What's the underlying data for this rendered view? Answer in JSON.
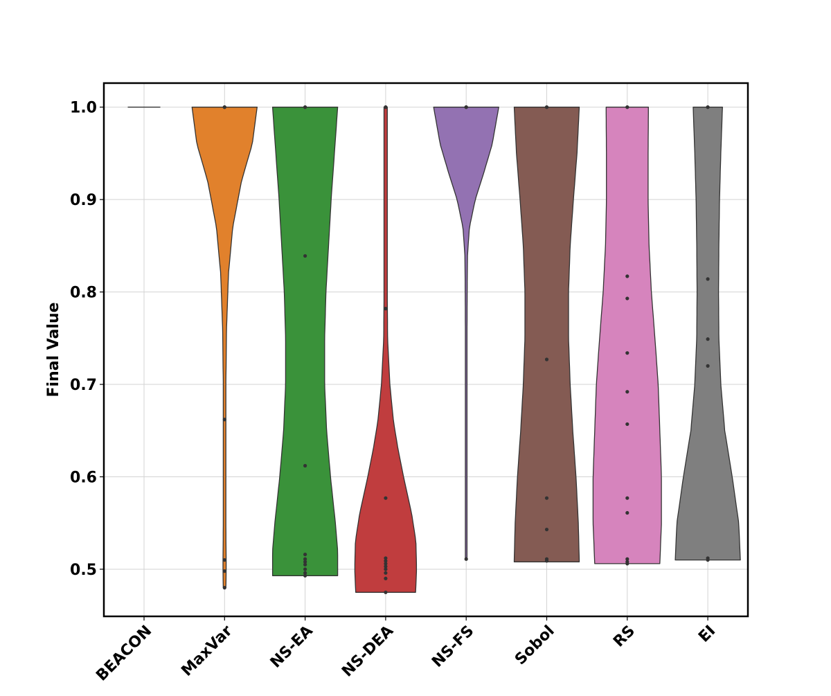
{
  "chart_data": {
    "type": "violin",
    "title": "",
    "xlabel": "",
    "ylabel": "Final Value",
    "ylim": [
      0.449,
      1.026
    ],
    "yticks": [
      0.5,
      0.6,
      0.7,
      0.8,
      0.9,
      1.0
    ],
    "ytick_labels": [
      "0.5",
      "0.6",
      "0.7",
      "0.8",
      "0.9",
      "1.0"
    ],
    "grid": true,
    "categories": [
      "BEACON",
      "MaxVar",
      "NS-EA",
      "NS-DEA",
      "NS-FS",
      "Sobol",
      "RS",
      "EI"
    ],
    "series": [
      {
        "category": "BEACON",
        "color": "#7f7f7f",
        "min": 1.0,
        "max": 1.0,
        "points": [],
        "density": [
          [
            1.0,
            1.0
          ]
        ]
      },
      {
        "category": "MaxVar",
        "color": "#e1812c",
        "min": 0.48,
        "max": 1.0,
        "points": [
          1.0,
          1.0,
          1.0,
          0.662,
          0.51,
          0.498,
          0.48
        ],
        "density": [
          [
            0.48,
            0.04
          ],
          [
            0.5,
            0.05
          ],
          [
            0.55,
            0.04
          ],
          [
            0.62,
            0.04
          ],
          [
            0.7,
            0.04
          ],
          [
            0.76,
            0.06
          ],
          [
            0.82,
            0.12
          ],
          [
            0.87,
            0.25
          ],
          [
            0.92,
            0.52
          ],
          [
            0.96,
            0.85
          ],
          [
            1.0,
            1.0
          ]
        ]
      },
      {
        "category": "NS-EA",
        "color": "#3a923a",
        "min": 0.493,
        "max": 1.0,
        "points": [
          1.0,
          1.0,
          0.839,
          0.612,
          0.516,
          0.511,
          0.508,
          0.505,
          0.5,
          0.496,
          0.493
        ],
        "density": [
          [
            0.493,
            1.0
          ],
          [
            0.52,
            1.0
          ],
          [
            0.55,
            0.93
          ],
          [
            0.6,
            0.78
          ],
          [
            0.65,
            0.66
          ],
          [
            0.7,
            0.6
          ],
          [
            0.75,
            0.6
          ],
          [
            0.8,
            0.64
          ],
          [
            0.85,
            0.72
          ],
          [
            0.9,
            0.8
          ],
          [
            0.95,
            0.9
          ],
          [
            1.0,
            1.0
          ]
        ]
      },
      {
        "category": "NS-DEA",
        "color": "#c03d3e",
        "min": 0.475,
        "max": 1.0,
        "points": [
          1.0,
          1.0,
          0.782,
          0.577,
          0.512,
          0.509,
          0.506,
          0.503,
          0.5,
          0.496,
          0.49,
          0.475
        ],
        "density": [
          [
            0.475,
            0.92
          ],
          [
            0.5,
            0.95
          ],
          [
            0.53,
            0.93
          ],
          [
            0.56,
            0.8
          ],
          [
            0.6,
            0.55
          ],
          [
            0.63,
            0.38
          ],
          [
            0.66,
            0.24
          ],
          [
            0.7,
            0.13
          ],
          [
            0.75,
            0.06
          ],
          [
            0.8,
            0.05
          ],
          [
            0.85,
            0.05
          ],
          [
            0.9,
            0.05
          ],
          [
            0.95,
            0.05
          ],
          [
            1.0,
            0.05
          ]
        ]
      },
      {
        "category": "NS-FS",
        "color": "#9372b2",
        "min": 0.511,
        "max": 1.0,
        "points": [
          1.0,
          1.0,
          1.0,
          0.511
        ],
        "density": [
          [
            0.511,
            0.02
          ],
          [
            0.6,
            0.02
          ],
          [
            0.7,
            0.02
          ],
          [
            0.8,
            0.03
          ],
          [
            0.84,
            0.04
          ],
          [
            0.87,
            0.1
          ],
          [
            0.9,
            0.28
          ],
          [
            0.93,
            0.55
          ],
          [
            0.96,
            0.8
          ],
          [
            1.0,
            1.0
          ]
        ]
      },
      {
        "category": "Sobol",
        "color": "#845b53",
        "min": 0.508,
        "max": 1.0,
        "points": [
          1.0,
          1.0,
          0.727,
          0.577,
          0.543,
          0.511,
          0.509
        ],
        "density": [
          [
            0.508,
            1.0
          ],
          [
            0.55,
            0.97
          ],
          [
            0.6,
            0.9
          ],
          [
            0.65,
            0.8
          ],
          [
            0.7,
            0.72
          ],
          [
            0.75,
            0.67
          ],
          [
            0.8,
            0.67
          ],
          [
            0.85,
            0.72
          ],
          [
            0.9,
            0.82
          ],
          [
            0.95,
            0.93
          ],
          [
            1.0,
            1.0
          ]
        ]
      },
      {
        "category": "RS",
        "color": "#d684bd",
        "min": 0.506,
        "max": 1.0,
        "points": [
          1.0,
          1.0,
          0.817,
          0.793,
          0.734,
          0.692,
          0.657,
          0.577,
          0.561,
          0.511,
          0.508,
          0.506
        ],
        "density": [
          [
            0.506,
            1.0
          ],
          [
            0.55,
            1.05
          ],
          [
            0.6,
            1.05
          ],
          [
            0.65,
            1.0
          ],
          [
            0.7,
            0.95
          ],
          [
            0.75,
            0.85
          ],
          [
            0.8,
            0.74
          ],
          [
            0.85,
            0.67
          ],
          [
            0.9,
            0.64
          ],
          [
            0.95,
            0.64
          ],
          [
            1.0,
            0.65
          ]
        ]
      },
      {
        "category": "EI",
        "color": "#7f7f7f",
        "min": 0.51,
        "max": 1.0,
        "points": [
          1.0,
          1.0,
          0.814,
          0.749,
          0.72,
          0.512,
          0.51
        ],
        "density": [
          [
            0.51,
            1.0
          ],
          [
            0.55,
            0.95
          ],
          [
            0.6,
            0.75
          ],
          [
            0.65,
            0.52
          ],
          [
            0.7,
            0.4
          ],
          [
            0.75,
            0.34
          ],
          [
            0.8,
            0.33
          ],
          [
            0.85,
            0.34
          ],
          [
            0.9,
            0.36
          ],
          [
            0.95,
            0.4
          ],
          [
            1.0,
            0.45
          ]
        ]
      }
    ]
  }
}
